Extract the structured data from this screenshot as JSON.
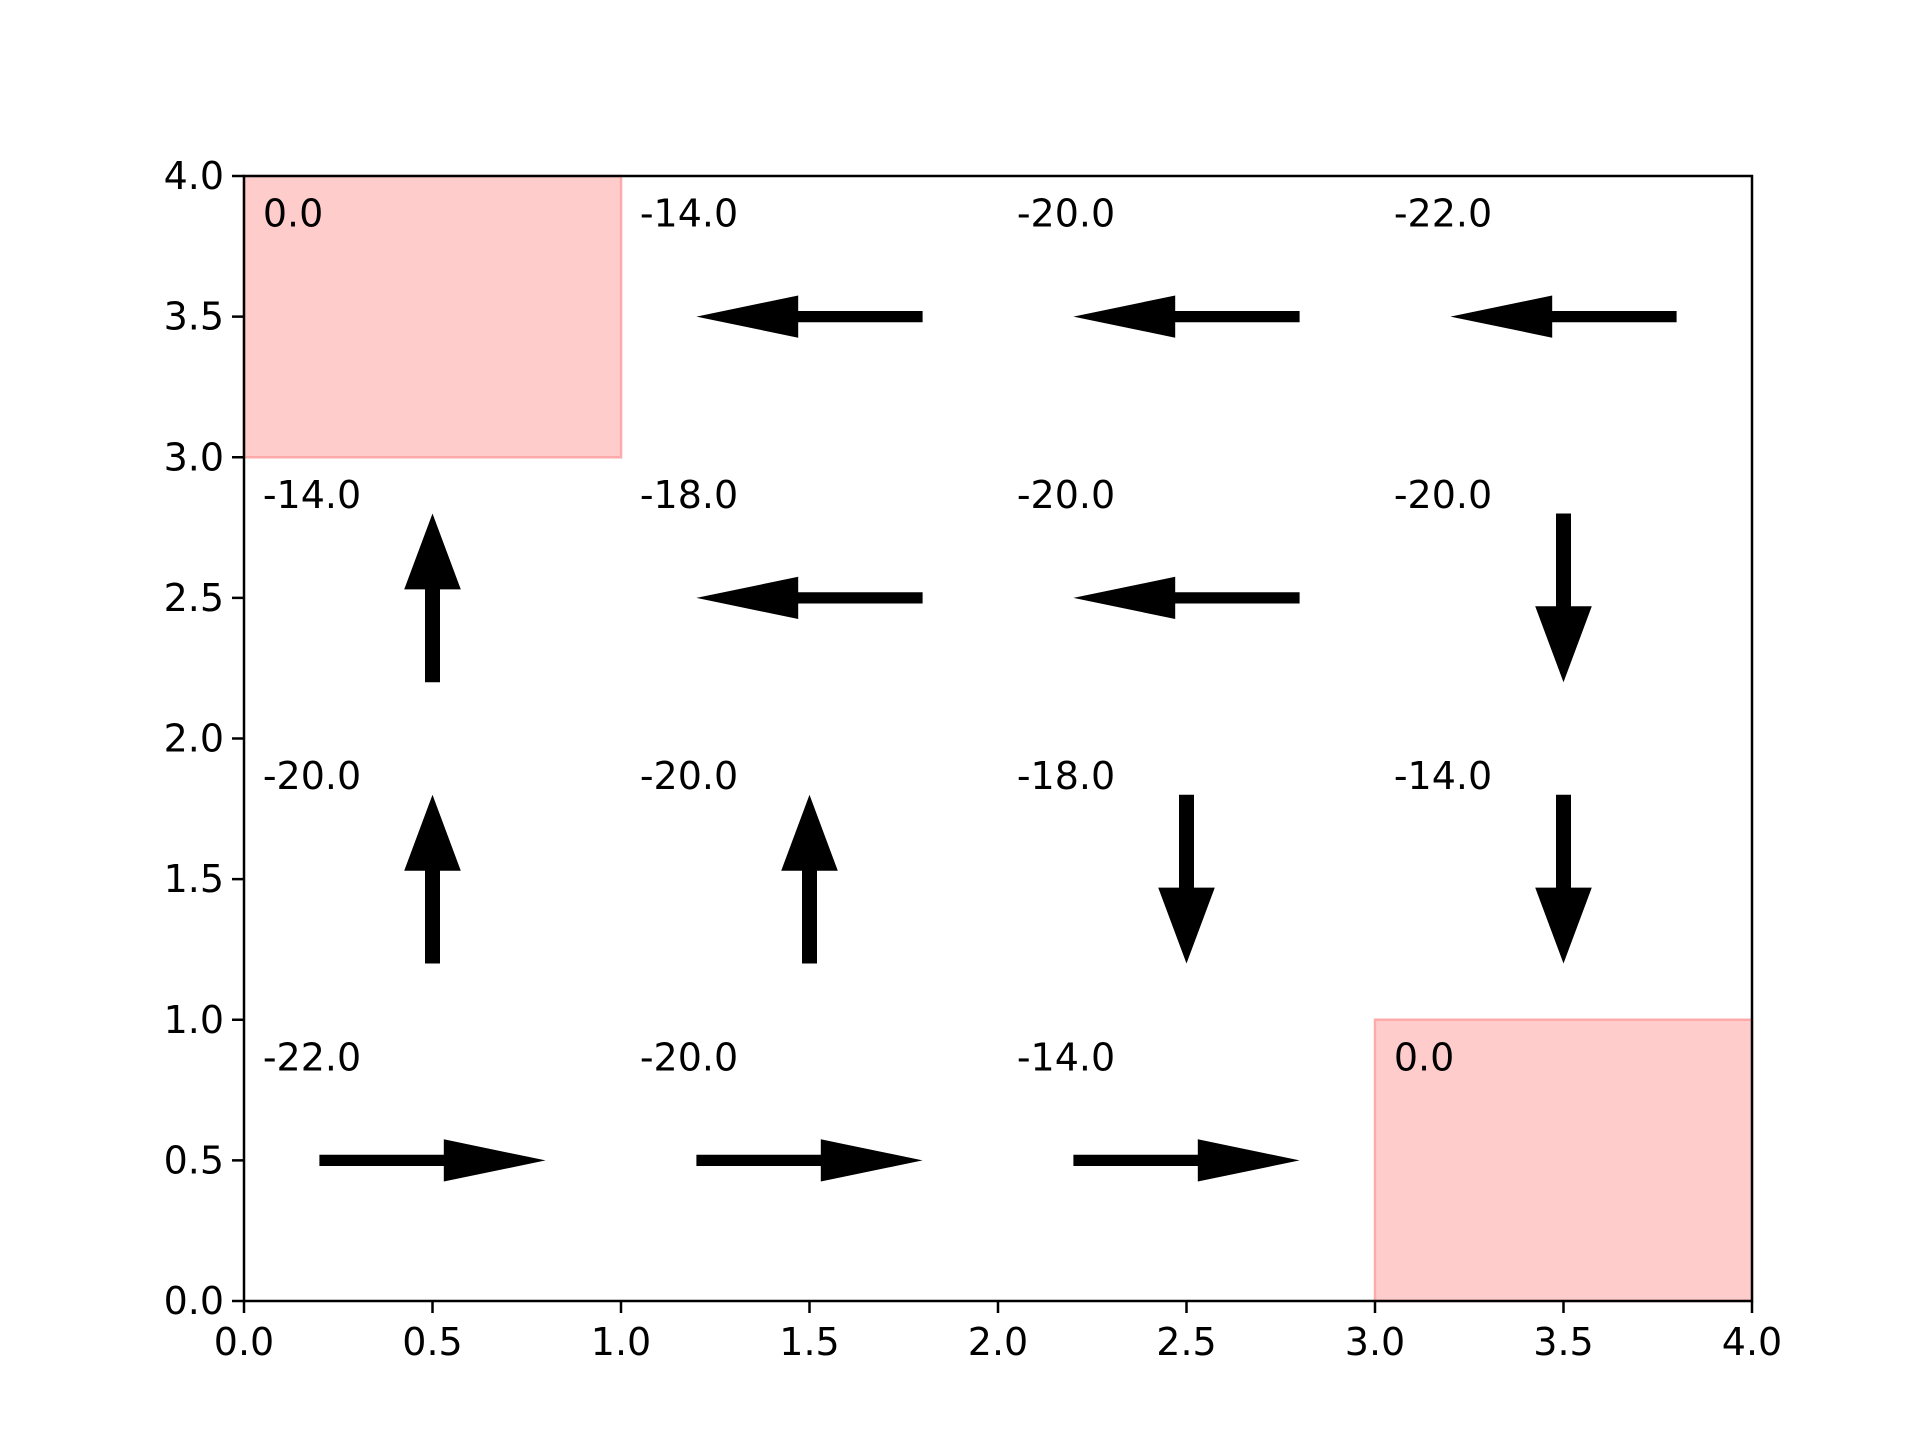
{
  "chart_data": {
    "type": "gridworld-policy",
    "title": "",
    "xlabel": "",
    "ylabel": "",
    "xlim": [
      0.0,
      4.0
    ],
    "ylim": [
      0.0,
      4.0
    ],
    "grid": false,
    "xticks": [
      "0.0",
      "0.5",
      "1.0",
      "1.5",
      "2.0",
      "2.5",
      "3.0",
      "3.5",
      "4.0"
    ],
    "yticks": [
      "0.0",
      "0.5",
      "1.0",
      "1.5",
      "2.0",
      "2.5",
      "3.0",
      "3.5",
      "4.0"
    ],
    "terminal_color": "#ffcccc",
    "terminal_edge_color": "#ffaaaa",
    "arrow_color": "#000000",
    "cells": [
      {
        "row": 0,
        "col": 0,
        "value": "0.0",
        "terminal": true,
        "arrow": "none"
      },
      {
        "row": 0,
        "col": 1,
        "value": "-14.0",
        "terminal": false,
        "arrow": "left"
      },
      {
        "row": 0,
        "col": 2,
        "value": "-20.0",
        "terminal": false,
        "arrow": "left"
      },
      {
        "row": 0,
        "col": 3,
        "value": "-22.0",
        "terminal": false,
        "arrow": "left"
      },
      {
        "row": 1,
        "col": 0,
        "value": "-14.0",
        "terminal": false,
        "arrow": "up"
      },
      {
        "row": 1,
        "col": 1,
        "value": "-18.0",
        "terminal": false,
        "arrow": "left"
      },
      {
        "row": 1,
        "col": 2,
        "value": "-20.0",
        "terminal": false,
        "arrow": "left"
      },
      {
        "row": 1,
        "col": 3,
        "value": "-20.0",
        "terminal": false,
        "arrow": "down"
      },
      {
        "row": 2,
        "col": 0,
        "value": "-20.0",
        "terminal": false,
        "arrow": "up"
      },
      {
        "row": 2,
        "col": 1,
        "value": "-20.0",
        "terminal": false,
        "arrow": "up"
      },
      {
        "row": 2,
        "col": 2,
        "value": "-18.0",
        "terminal": false,
        "arrow": "down"
      },
      {
        "row": 2,
        "col": 3,
        "value": "-14.0",
        "terminal": false,
        "arrow": "down"
      },
      {
        "row": 3,
        "col": 0,
        "value": "-22.0",
        "terminal": false,
        "arrow": "right"
      },
      {
        "row": 3,
        "col": 1,
        "value": "-20.0",
        "terminal": false,
        "arrow": "right"
      },
      {
        "row": 3,
        "col": 2,
        "value": "-14.0",
        "terminal": false,
        "arrow": "right"
      },
      {
        "row": 3,
        "col": 3,
        "value": "0.0",
        "terminal": true,
        "arrow": "none"
      }
    ]
  }
}
